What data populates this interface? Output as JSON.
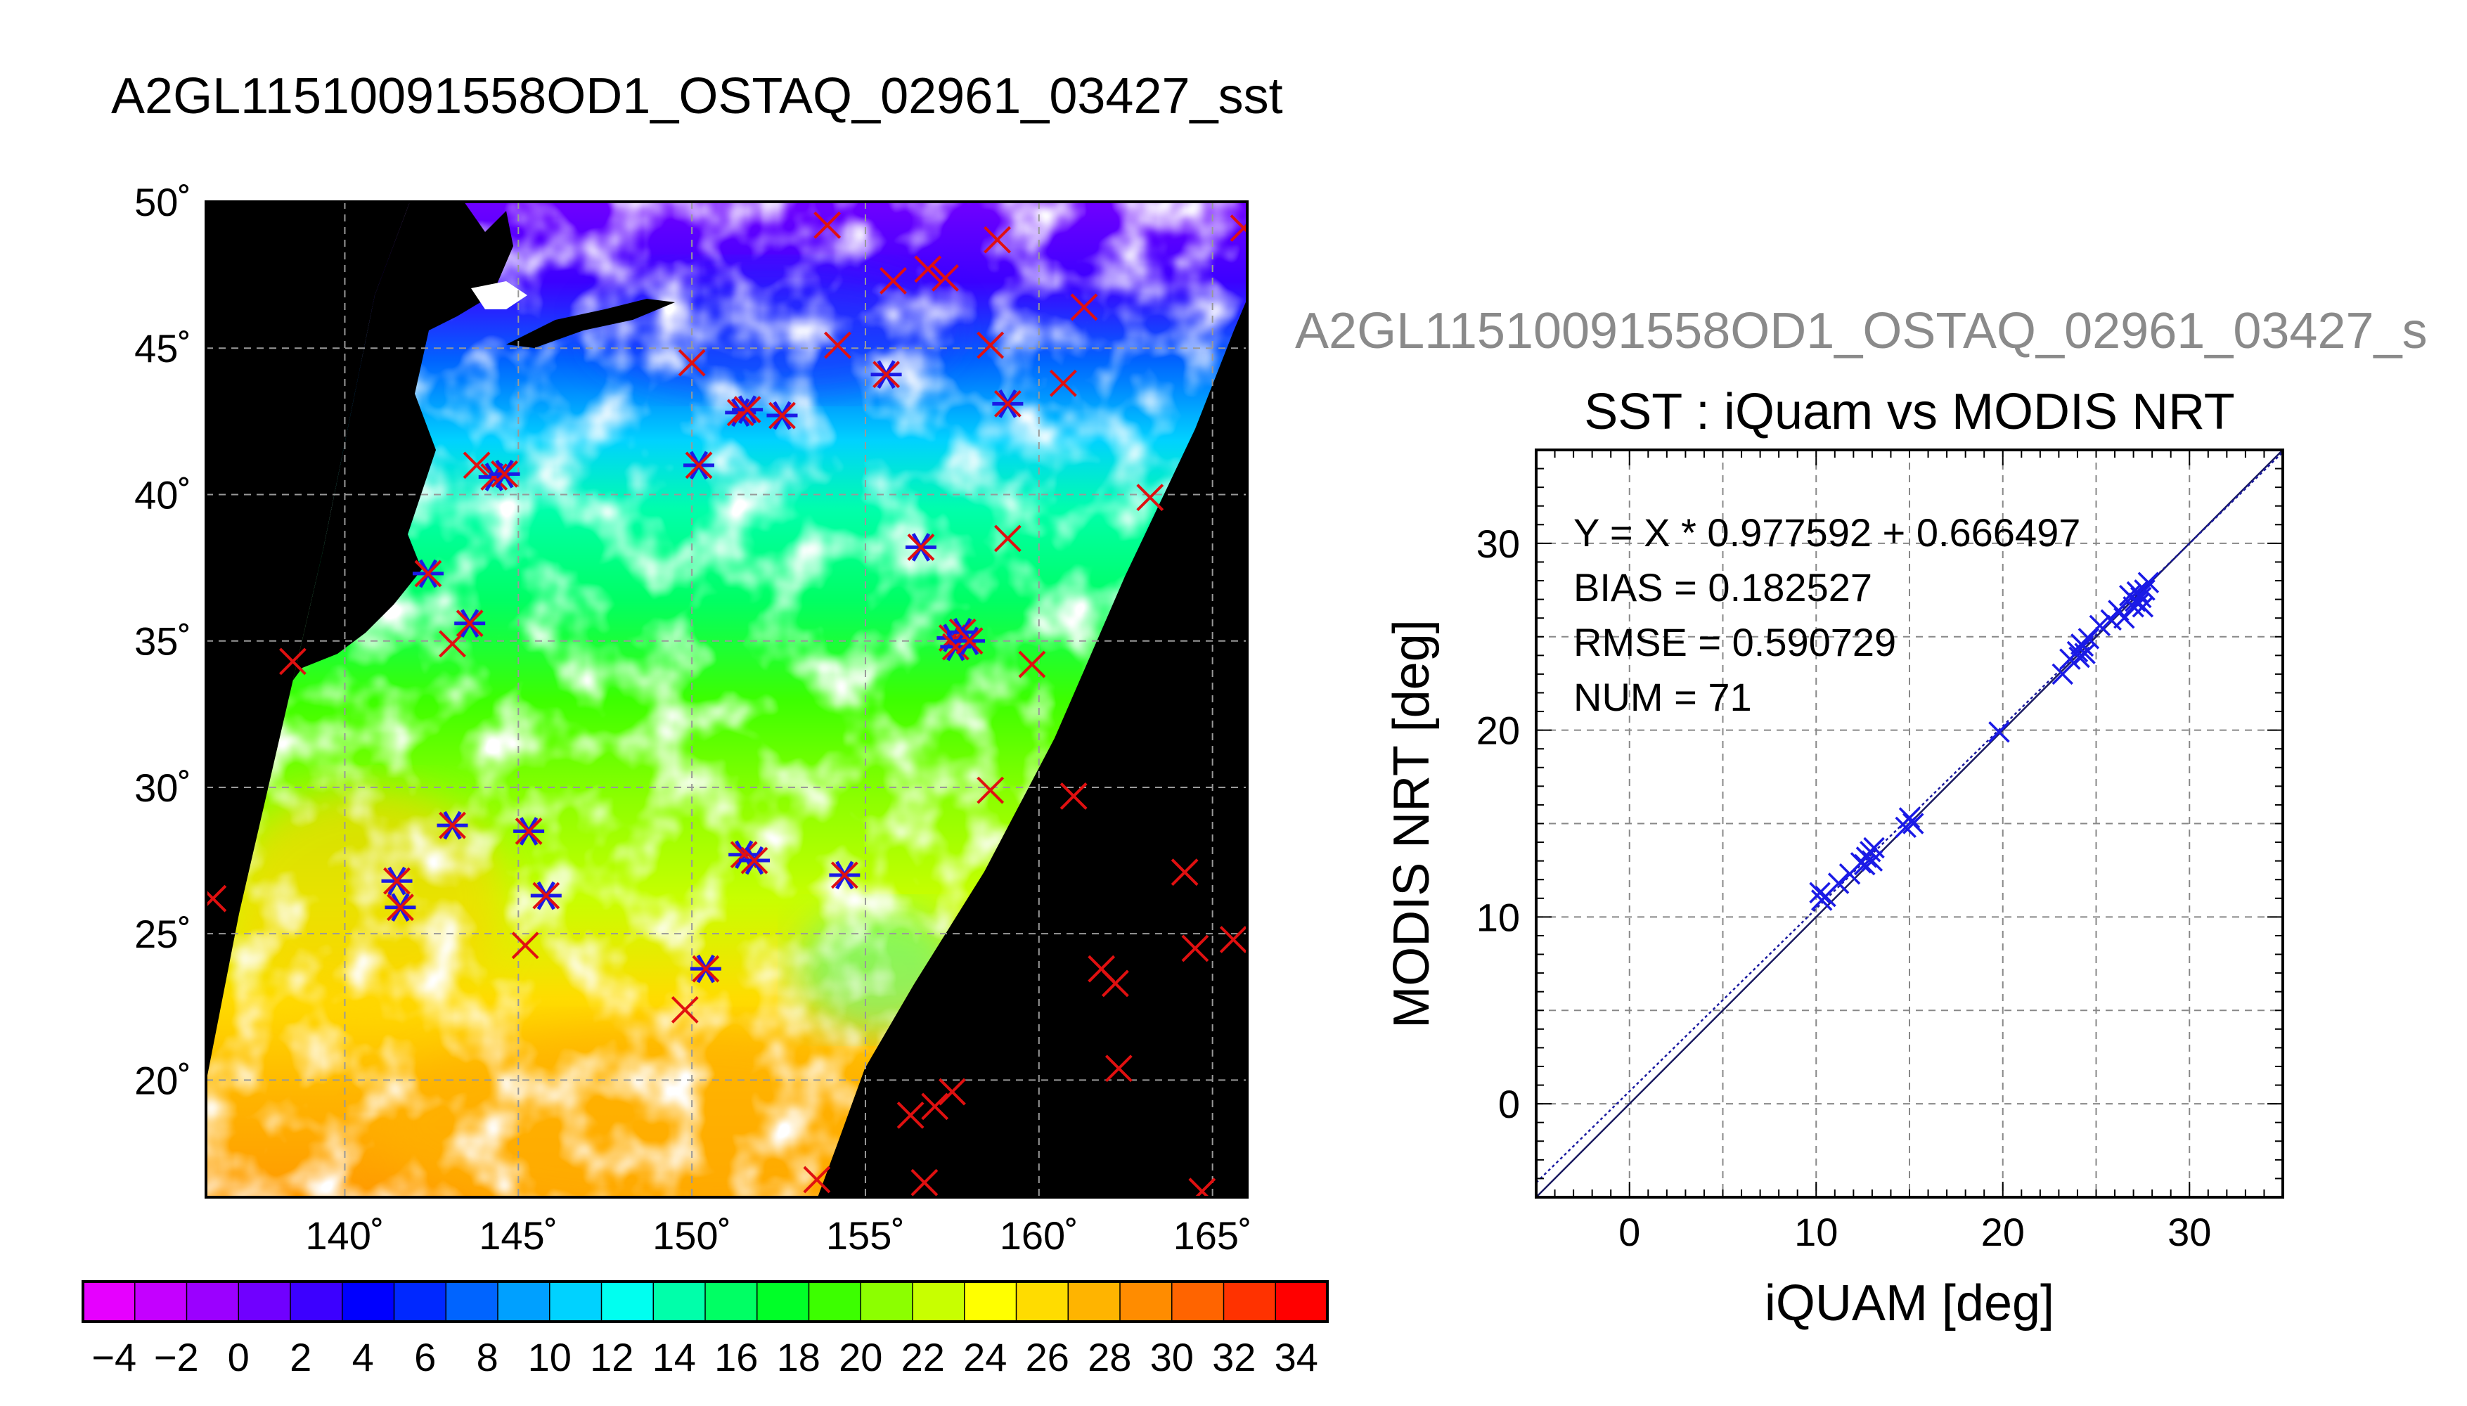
{
  "page": {
    "title": "A2GL11510091558OD1_OSTAQ_02961_03427_sst",
    "ghost_title": "A2GL11510091558OD1_OSTAQ_02961_03427_s"
  },
  "colors": {
    "buoy_marker": "#e01010",
    "match_marker": "#1a1ae6",
    "land": "#000000",
    "cloud": "#ffffff",
    "fit_line": "#1a1aa0"
  },
  "chart_data": [
    {
      "type": "heatmap",
      "title": "A2GL11510091558OD1_OSTAQ_02961_03427_sst",
      "xlim": [
        136,
        166
      ],
      "ylim": [
        16,
        50
      ],
      "x_ticks": [
        "140˚",
        "145˚",
        "150˚",
        "155˚",
        "160˚",
        "165˚"
      ],
      "x_tick_values": [
        140,
        145,
        150,
        155,
        160,
        165
      ],
      "y_ticks": [
        "20˚",
        "25˚",
        "30˚",
        "35˚",
        "40˚",
        "45˚",
        "50˚"
      ],
      "y_tick_values": [
        20,
        25,
        30,
        35,
        40,
        45,
        50
      ],
      "grid": true,
      "colorbar": {
        "range": [
          -5,
          35
        ],
        "tick_labels": [
          "−4",
          "−2",
          "0",
          "2",
          "4",
          "6",
          "8",
          "10",
          "12",
          "14",
          "16",
          "18",
          "20",
          "22",
          "24",
          "26",
          "28",
          "30",
          "32",
          "34"
        ],
        "tick_values": [
          -4,
          -2,
          0,
          2,
          4,
          6,
          8,
          10,
          12,
          14,
          16,
          18,
          20,
          22,
          24,
          26,
          28,
          30,
          32,
          34
        ],
        "colors": [
          "#e600ff",
          "#c400ff",
          "#9b00ff",
          "#7000ff",
          "#3c00ff",
          "#0000ff",
          "#0028ff",
          "#0064ff",
          "#00a0ff",
          "#00d2ff",
          "#00fff0",
          "#00ffaa",
          "#00ff64",
          "#00ff28",
          "#3cff00",
          "#8cff00",
          "#c8ff00",
          "#ffff00",
          "#ffdc00",
          "#ffb400",
          "#ff8c00",
          "#ff6400",
          "#ff3200",
          "#ff0000"
        ]
      },
      "buoys": [
        {
          "lon": 153.9,
          "lat": 49.2
        },
        {
          "lon": 158.8,
          "lat": 48.7
        },
        {
          "lon": 156.8,
          "lat": 47.7
        },
        {
          "lon": 155.8,
          "lat": 47.3
        },
        {
          "lon": 157.3,
          "lat": 47.4
        },
        {
          "lon": 161.3,
          "lat": 46.4
        },
        {
          "lon": 165.9,
          "lat": 49.1
        },
        {
          "lon": 150.0,
          "lat": 44.5
        },
        {
          "lon": 154.2,
          "lat": 45.1
        },
        {
          "lon": 158.6,
          "lat": 45.1
        },
        {
          "lon": 160.7,
          "lat": 43.8
        },
        {
          "lon": 143.8,
          "lat": 41.0
        },
        {
          "lon": 163.2,
          "lat": 39.9
        },
        {
          "lon": 159.1,
          "lat": 38.5
        },
        {
          "lon": 138.5,
          "lat": 34.3
        },
        {
          "lon": 143.1,
          "lat": 34.9
        },
        {
          "lon": 159.8,
          "lat": 34.2
        },
        {
          "lon": 158.6,
          "lat": 29.9
        },
        {
          "lon": 161.0,
          "lat": 29.7
        },
        {
          "lon": 164.2,
          "lat": 27.1
        },
        {
          "lon": 136.2,
          "lat": 26.2
        },
        {
          "lon": 164.5,
          "lat": 24.5
        },
        {
          "lon": 165.6,
          "lat": 24.8
        },
        {
          "lon": 161.8,
          "lat": 23.8
        },
        {
          "lon": 162.2,
          "lat": 23.3
        },
        {
          "lon": 162.3,
          "lat": 20.4
        },
        {
          "lon": 157.5,
          "lat": 19.6
        },
        {
          "lon": 156.3,
          "lat": 18.8
        },
        {
          "lon": 157.0,
          "lat": 19.1
        },
        {
          "lon": 156.7,
          "lat": 16.5
        },
        {
          "lon": 153.6,
          "lat": 16.6
        },
        {
          "lon": 164.7,
          "lat": 16.2
        },
        {
          "lon": 149.8,
          "lat": 22.4
        },
        {
          "lon": 145.2,
          "lat": 24.6
        }
      ],
      "matchups": [
        {
          "lon": 155.6,
          "lat": 44.1
        },
        {
          "lon": 151.4,
          "lat": 42.8
        },
        {
          "lon": 151.6,
          "lat": 42.9
        },
        {
          "lon": 152.6,
          "lat": 42.7
        },
        {
          "lon": 159.1,
          "lat": 43.1
        },
        {
          "lon": 150.2,
          "lat": 41.0
        },
        {
          "lon": 144.3,
          "lat": 40.6
        },
        {
          "lon": 144.6,
          "lat": 40.7
        },
        {
          "lon": 142.4,
          "lat": 37.3
        },
        {
          "lon": 143.6,
          "lat": 35.6
        },
        {
          "lon": 156.6,
          "lat": 38.2
        },
        {
          "lon": 157.5,
          "lat": 35.1
        },
        {
          "lon": 157.8,
          "lat": 35.3
        },
        {
          "lon": 157.6,
          "lat": 34.8
        },
        {
          "lon": 158.0,
          "lat": 35.0
        },
        {
          "lon": 143.1,
          "lat": 28.7
        },
        {
          "lon": 145.3,
          "lat": 28.5
        },
        {
          "lon": 151.5,
          "lat": 27.7
        },
        {
          "lon": 151.8,
          "lat": 27.5
        },
        {
          "lon": 154.4,
          "lat": 27.0
        },
        {
          "lon": 141.5,
          "lat": 26.8
        },
        {
          "lon": 141.6,
          "lat": 25.9
        },
        {
          "lon": 145.8,
          "lat": 26.3
        },
        {
          "lon": 150.4,
          "lat": 23.8
        }
      ]
    },
    {
      "type": "scatter",
      "title": "SST : iQuam vs MODIS NRT",
      "xlabel": "iQUAM [deg]",
      "ylabel": "MODIS NRT [deg]",
      "xlim": [
        -5,
        35
      ],
      "ylim": [
        -5,
        35
      ],
      "x_ticks": [
        "0",
        "10",
        "20",
        "30"
      ],
      "x_tick_values": [
        0,
        10,
        20,
        30
      ],
      "y_ticks": [
        "0",
        "10",
        "20",
        "30"
      ],
      "y_tick_values": [
        0,
        10,
        20,
        30
      ],
      "grid": true,
      "annotations": [
        "Y = X * 0.977592 + 0.666497",
        "BIAS = 0.182527",
        "RMSE = 0.590729",
        "NUM = 71"
      ],
      "fit": {
        "slope": 0.977592,
        "intercept": 0.666497
      },
      "points": [
        [
          10.2,
          11.3
        ],
        [
          10.3,
          10.9
        ],
        [
          10.5,
          11.1
        ],
        [
          11.2,
          11.8
        ],
        [
          11.8,
          12.3
        ],
        [
          12.4,
          12.9
        ],
        [
          12.7,
          13.2
        ],
        [
          12.9,
          13.5
        ],
        [
          13.0,
          13.0
        ],
        [
          13.1,
          13.7
        ],
        [
          12.6,
          12.8
        ],
        [
          15.0,
          15.3
        ],
        [
          14.8,
          14.8
        ],
        [
          15.2,
          15.0
        ],
        [
          19.8,
          19.9
        ],
        [
          23.2,
          23.0
        ],
        [
          23.6,
          23.8
        ],
        [
          24.0,
          24.2
        ],
        [
          24.2,
          24.6
        ],
        [
          24.4,
          24.1
        ],
        [
          24.6,
          24.9
        ],
        [
          24.1,
          23.9
        ],
        [
          24.3,
          24.5
        ],
        [
          25.2,
          25.6
        ],
        [
          25.8,
          25.9
        ],
        [
          26.2,
          26.4
        ],
        [
          26.5,
          26.0
        ],
        [
          26.8,
          27.2
        ],
        [
          27.0,
          26.6
        ],
        [
          27.2,
          27.4
        ],
        [
          27.3,
          26.8
        ],
        [
          27.4,
          27.1
        ],
        [
          27.5,
          26.6
        ],
        [
          27.6,
          27.5
        ],
        [
          27.8,
          27.9
        ],
        [
          27.1,
          26.9
        ]
      ]
    }
  ]
}
